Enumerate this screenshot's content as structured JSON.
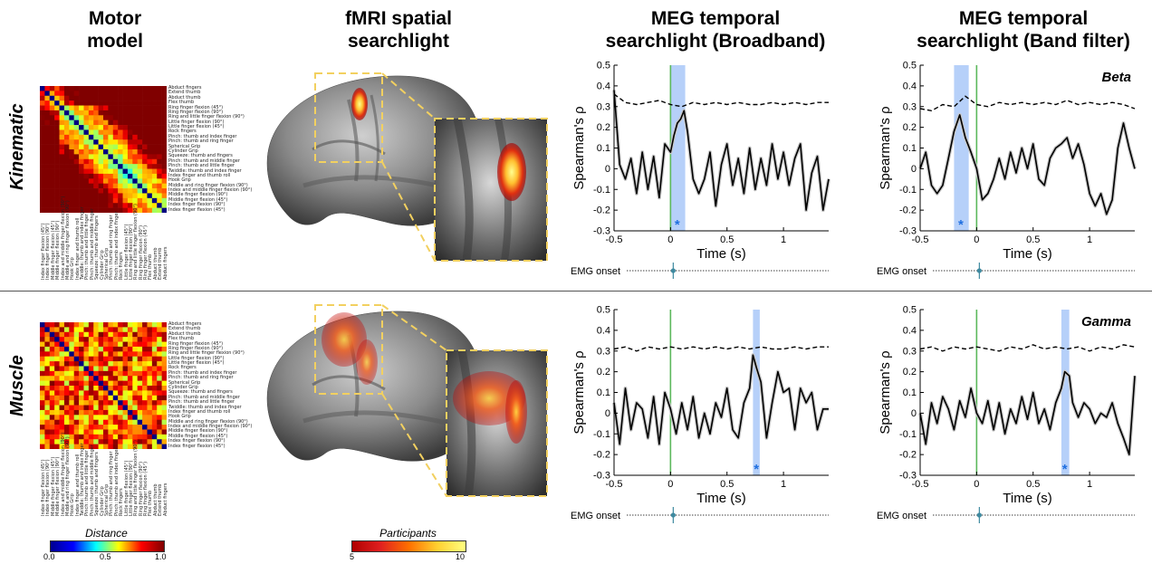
{
  "columns": {
    "motor": "Motor\nmodel",
    "fmri": "fMRI spatial\nsearchlight",
    "meg_broad": "MEG temporal\nsearchlight (Broadband)",
    "meg_band": "MEG temporal\nsearchlight (Band filter)"
  },
  "rows": {
    "kinematic": "Kinematic",
    "muscle": "Muscle"
  },
  "matrix_labels": [
    "Abduct fingers",
    "Extend thumb",
    "Abduct thumb",
    "Flex thumb",
    "Ring finger flexion (45°)",
    "Ring finger flexion (90°)",
    "Ring and little finger flexion (90°)",
    "Little finger flexion (90°)",
    "Little finger flexion (45°)",
    "Rock fingers",
    "Pinch: thumb and index finger",
    "Pinch: thumb and ring finger",
    "Spherical Grip",
    "Cylinder Grip",
    "Squeeze: thumb and fingers",
    "Pinch: thumb and middle finger",
    "Pinch: thumb and little finger",
    "Twiddle: thumb and index finger",
    "Index finger and thumb roll",
    "Hook Grip",
    "Middle and ring finger flexion (90°)",
    "Index and middle finger flexion (90°)",
    "Middle finger flexion (90°)",
    "Middle finger flexion (45°)",
    "Index finger flexion (90°)",
    "Index finger flexion (45°)"
  ],
  "colorbars": {
    "distance": {
      "title": "Distance",
      "ticks": [
        "0.0",
        "0.5",
        "1.0"
      ],
      "colors": [
        "#00008f",
        "#0000ff",
        "#00ffff",
        "#ffff00",
        "#ff0000",
        "#800000"
      ]
    },
    "participants": {
      "title": "Participants",
      "ticks": [
        "5",
        "10"
      ],
      "colors": [
        "#b00000",
        "#e02020",
        "#ff7000",
        "#ffd030",
        "#ffff80"
      ]
    }
  },
  "chart_labels": {
    "ylabel": "Spearman's ρ",
    "xlabel": "Time (s)",
    "emg": "EMG onset",
    "star": "*",
    "band_beta": "Beta",
    "band_gamma": "Gamma"
  },
  "chart_data": [
    {
      "type": "line",
      "id": "kin-broad",
      "xlim": [
        -0.5,
        1.4
      ],
      "ylim": [
        -0.3,
        0.5
      ],
      "xticks": [
        "-0.5",
        "0",
        "0.5",
        "1"
      ],
      "yticks": [
        "0.5",
        "0.4",
        "0.3",
        "0.2",
        "0.1",
        "0",
        "-0.1",
        "-0.2",
        "-0.3"
      ],
      "ylabel": "Spearman's ρ",
      "xlabel": "Time (s)",
      "onset_line": 0,
      "highlight": [
        0.0,
        0.13
      ],
      "star_x": 0.06,
      "series": [
        {
          "style": "solid",
          "x": [
            -0.5,
            -0.45,
            -0.4,
            -0.35,
            -0.3,
            -0.25,
            -0.2,
            -0.15,
            -0.1,
            -0.05,
            0,
            0.03,
            0.06,
            0.09,
            0.12,
            0.15,
            0.2,
            0.25,
            0.3,
            0.35,
            0.4,
            0.45,
            0.5,
            0.55,
            0.6,
            0.65,
            0.7,
            0.75,
            0.8,
            0.85,
            0.9,
            0.95,
            1.0,
            1.05,
            1.1,
            1.15,
            1.2,
            1.25,
            1.3,
            1.35,
            1.4
          ],
          "y": [
            0.38,
            0.02,
            -0.05,
            0.05,
            -0.12,
            0.08,
            -0.1,
            0.06,
            -0.14,
            0.12,
            0.08,
            0.16,
            0.22,
            0.24,
            0.28,
            0.18,
            -0.05,
            -0.12,
            -0.05,
            0.08,
            -0.18,
            0.02,
            0.12,
            -0.08,
            0.05,
            -0.12,
            0.1,
            -0.1,
            0.05,
            -0.08,
            0.12,
            -0.05,
            0.08,
            -0.08,
            0.05,
            0.12,
            -0.2,
            -0.02,
            0.06,
            -0.2,
            -0.05
          ]
        },
        {
          "style": "dashed",
          "x": [
            -0.5,
            -0.4,
            -0.3,
            -0.2,
            -0.1,
            0,
            0.1,
            0.2,
            0.3,
            0.4,
            0.5,
            0.6,
            0.7,
            0.8,
            0.9,
            1.0,
            1.1,
            1.2,
            1.3,
            1.4
          ],
          "y": [
            0.36,
            0.32,
            0.31,
            0.32,
            0.33,
            0.31,
            0.3,
            0.32,
            0.31,
            0.32,
            0.31,
            0.32,
            0.31,
            0.31,
            0.32,
            0.31,
            0.32,
            0.31,
            0.32,
            0.32
          ]
        }
      ]
    },
    {
      "type": "line",
      "id": "kin-band",
      "xlim": [
        -0.5,
        1.4
      ],
      "ylim": [
        -0.3,
        0.5
      ],
      "xticks": [
        "-0.5",
        "0",
        "0.5",
        "1"
      ],
      "yticks": [
        "0.5",
        "0.4",
        "0.3",
        "0.2",
        "0.1",
        "0",
        "-0.1",
        "-0.2",
        "-0.3"
      ],
      "ylabel": "Spearman's ρ",
      "xlabel": "Time (s)",
      "onset_line": 0,
      "highlight": [
        -0.2,
        -0.07
      ],
      "star_x": -0.14,
      "band": "Beta",
      "series": [
        {
          "style": "solid",
          "x": [
            -0.5,
            -0.45,
            -0.4,
            -0.35,
            -0.3,
            -0.25,
            -0.2,
            -0.15,
            -0.1,
            -0.05,
            0,
            0.05,
            0.1,
            0.15,
            0.2,
            0.25,
            0.3,
            0.35,
            0.4,
            0.45,
            0.5,
            0.55,
            0.6,
            0.65,
            0.7,
            0.75,
            0.8,
            0.85,
            0.9,
            0.95,
            1.0,
            1.05,
            1.1,
            1.15,
            1.2,
            1.25,
            1.3,
            1.35,
            1.4
          ],
          "y": [
            0.0,
            0.08,
            -0.08,
            -0.12,
            -0.08,
            0.05,
            0.18,
            0.26,
            0.15,
            0.08,
            0.0,
            -0.15,
            -0.12,
            -0.05,
            0.05,
            -0.05,
            0.08,
            -0.02,
            0.1,
            0.0,
            0.12,
            -0.05,
            -0.08,
            0.05,
            0.1,
            0.12,
            0.15,
            0.05,
            0.12,
            0.02,
            -0.12,
            -0.18,
            -0.12,
            -0.22,
            -0.15,
            0.1,
            0.22,
            0.1,
            0.0
          ]
        },
        {
          "style": "dashed",
          "x": [
            -0.5,
            -0.4,
            -0.3,
            -0.2,
            -0.1,
            0,
            0.1,
            0.2,
            0.3,
            0.4,
            0.5,
            0.6,
            0.7,
            0.8,
            0.9,
            1.0,
            1.1,
            1.2,
            1.3,
            1.4
          ],
          "y": [
            0.29,
            0.28,
            0.31,
            0.3,
            0.35,
            0.31,
            0.3,
            0.32,
            0.31,
            0.32,
            0.31,
            0.32,
            0.31,
            0.33,
            0.31,
            0.32,
            0.31,
            0.32,
            0.31,
            0.29
          ]
        }
      ]
    },
    {
      "type": "line",
      "id": "mus-broad",
      "xlim": [
        -0.5,
        1.4
      ],
      "ylim": [
        -0.3,
        0.5
      ],
      "xticks": [
        "-0.5",
        "0",
        "0.5",
        "1"
      ],
      "yticks": [
        "0.5",
        "0.4",
        "0.3",
        "0.2",
        "0.1",
        "0",
        "-0.1",
        "-0.2",
        "-0.3"
      ],
      "ylabel": "Spearman's ρ",
      "xlabel": "Time (s)",
      "onset_line": 0,
      "highlight": [
        0.73,
        0.79
      ],
      "star_x": 0.76,
      "series": [
        {
          "style": "solid",
          "x": [
            -0.5,
            -0.45,
            -0.4,
            -0.35,
            -0.3,
            -0.25,
            -0.2,
            -0.15,
            -0.1,
            -0.05,
            0,
            0.05,
            0.1,
            0.15,
            0.2,
            0.25,
            0.3,
            0.35,
            0.4,
            0.45,
            0.5,
            0.55,
            0.6,
            0.65,
            0.7,
            0.73,
            0.76,
            0.8,
            0.85,
            0.9,
            0.95,
            1.0,
            1.05,
            1.1,
            1.15,
            1.2,
            1.25,
            1.3,
            1.35,
            1.4
          ],
          "y": [
            0.05,
            -0.15,
            0.12,
            -0.08,
            0.05,
            0.02,
            -0.12,
            0.08,
            -0.15,
            0.1,
            0.02,
            -0.1,
            0.05,
            -0.08,
            0.08,
            -0.12,
            0.0,
            -0.1,
            0.05,
            -0.02,
            0.12,
            -0.08,
            -0.12,
            0.05,
            0.12,
            0.28,
            0.22,
            0.15,
            -0.12,
            0.05,
            0.2,
            0.1,
            0.12,
            -0.08,
            0.12,
            0.05,
            0.1,
            -0.08,
            0.02,
            0.02
          ]
        },
        {
          "style": "dashed",
          "x": [
            -0.5,
            -0.4,
            -0.3,
            -0.2,
            -0.1,
            0,
            0.1,
            0.2,
            0.3,
            0.4,
            0.5,
            0.6,
            0.7,
            0.8,
            0.9,
            1.0,
            1.1,
            1.2,
            1.3,
            1.4
          ],
          "y": [
            0.31,
            0.32,
            0.3,
            0.32,
            0.31,
            0.32,
            0.31,
            0.32,
            0.31,
            0.32,
            0.31,
            0.32,
            0.31,
            0.32,
            0.31,
            0.31,
            0.32,
            0.31,
            0.32,
            0.32
          ]
        }
      ]
    },
    {
      "type": "line",
      "id": "mus-band",
      "xlim": [
        -0.5,
        1.4
      ],
      "ylim": [
        -0.3,
        0.5
      ],
      "xticks": [
        "-0.5",
        "0",
        "0.5",
        "1"
      ],
      "yticks": [
        "0.5",
        "0.4",
        "0.3",
        "0.2",
        "0.1",
        "0",
        "-0.1",
        "-0.2",
        "-0.3"
      ],
      "ylabel": "Spearman's ρ",
      "xlabel": "Time (s)",
      "onset_line": 0,
      "highlight": [
        0.75,
        0.82
      ],
      "star_x": 0.78,
      "band": "Gamma",
      "series": [
        {
          "style": "solid",
          "x": [
            -0.5,
            -0.45,
            -0.4,
            -0.35,
            -0.3,
            -0.25,
            -0.2,
            -0.15,
            -0.1,
            -0.05,
            0,
            0.05,
            0.1,
            0.15,
            0.2,
            0.25,
            0.3,
            0.35,
            0.4,
            0.45,
            0.5,
            0.55,
            0.6,
            0.65,
            0.7,
            0.75,
            0.78,
            0.82,
            0.85,
            0.9,
            0.95,
            1.0,
            1.05,
            1.1,
            1.15,
            1.2,
            1.25,
            1.3,
            1.35,
            1.4
          ],
          "y": [
            0.0,
            -0.15,
            0.05,
            -0.05,
            0.08,
            0.02,
            -0.08,
            0.06,
            -0.02,
            0.12,
            0.0,
            -0.05,
            0.06,
            -0.08,
            0.05,
            -0.1,
            0.02,
            -0.05,
            0.08,
            -0.03,
            0.1,
            -0.05,
            0.02,
            -0.08,
            0.05,
            0.12,
            0.2,
            0.18,
            0.05,
            -0.02,
            0.05,
            0.02,
            -0.05,
            0.0,
            -0.02,
            0.05,
            -0.05,
            -0.12,
            -0.2,
            0.18
          ]
        },
        {
          "style": "dashed",
          "x": [
            -0.5,
            -0.4,
            -0.3,
            -0.2,
            -0.1,
            0,
            0.1,
            0.2,
            0.3,
            0.4,
            0.5,
            0.6,
            0.7,
            0.8,
            0.9,
            1.0,
            1.1,
            1.2,
            1.3,
            1.4
          ],
          "y": [
            0.31,
            0.32,
            0.3,
            0.32,
            0.31,
            0.32,
            0.31,
            0.3,
            0.32,
            0.31,
            0.33,
            0.31,
            0.32,
            0.31,
            0.32,
            0.3,
            0.32,
            0.31,
            0.33,
            0.32
          ]
        }
      ]
    }
  ]
}
